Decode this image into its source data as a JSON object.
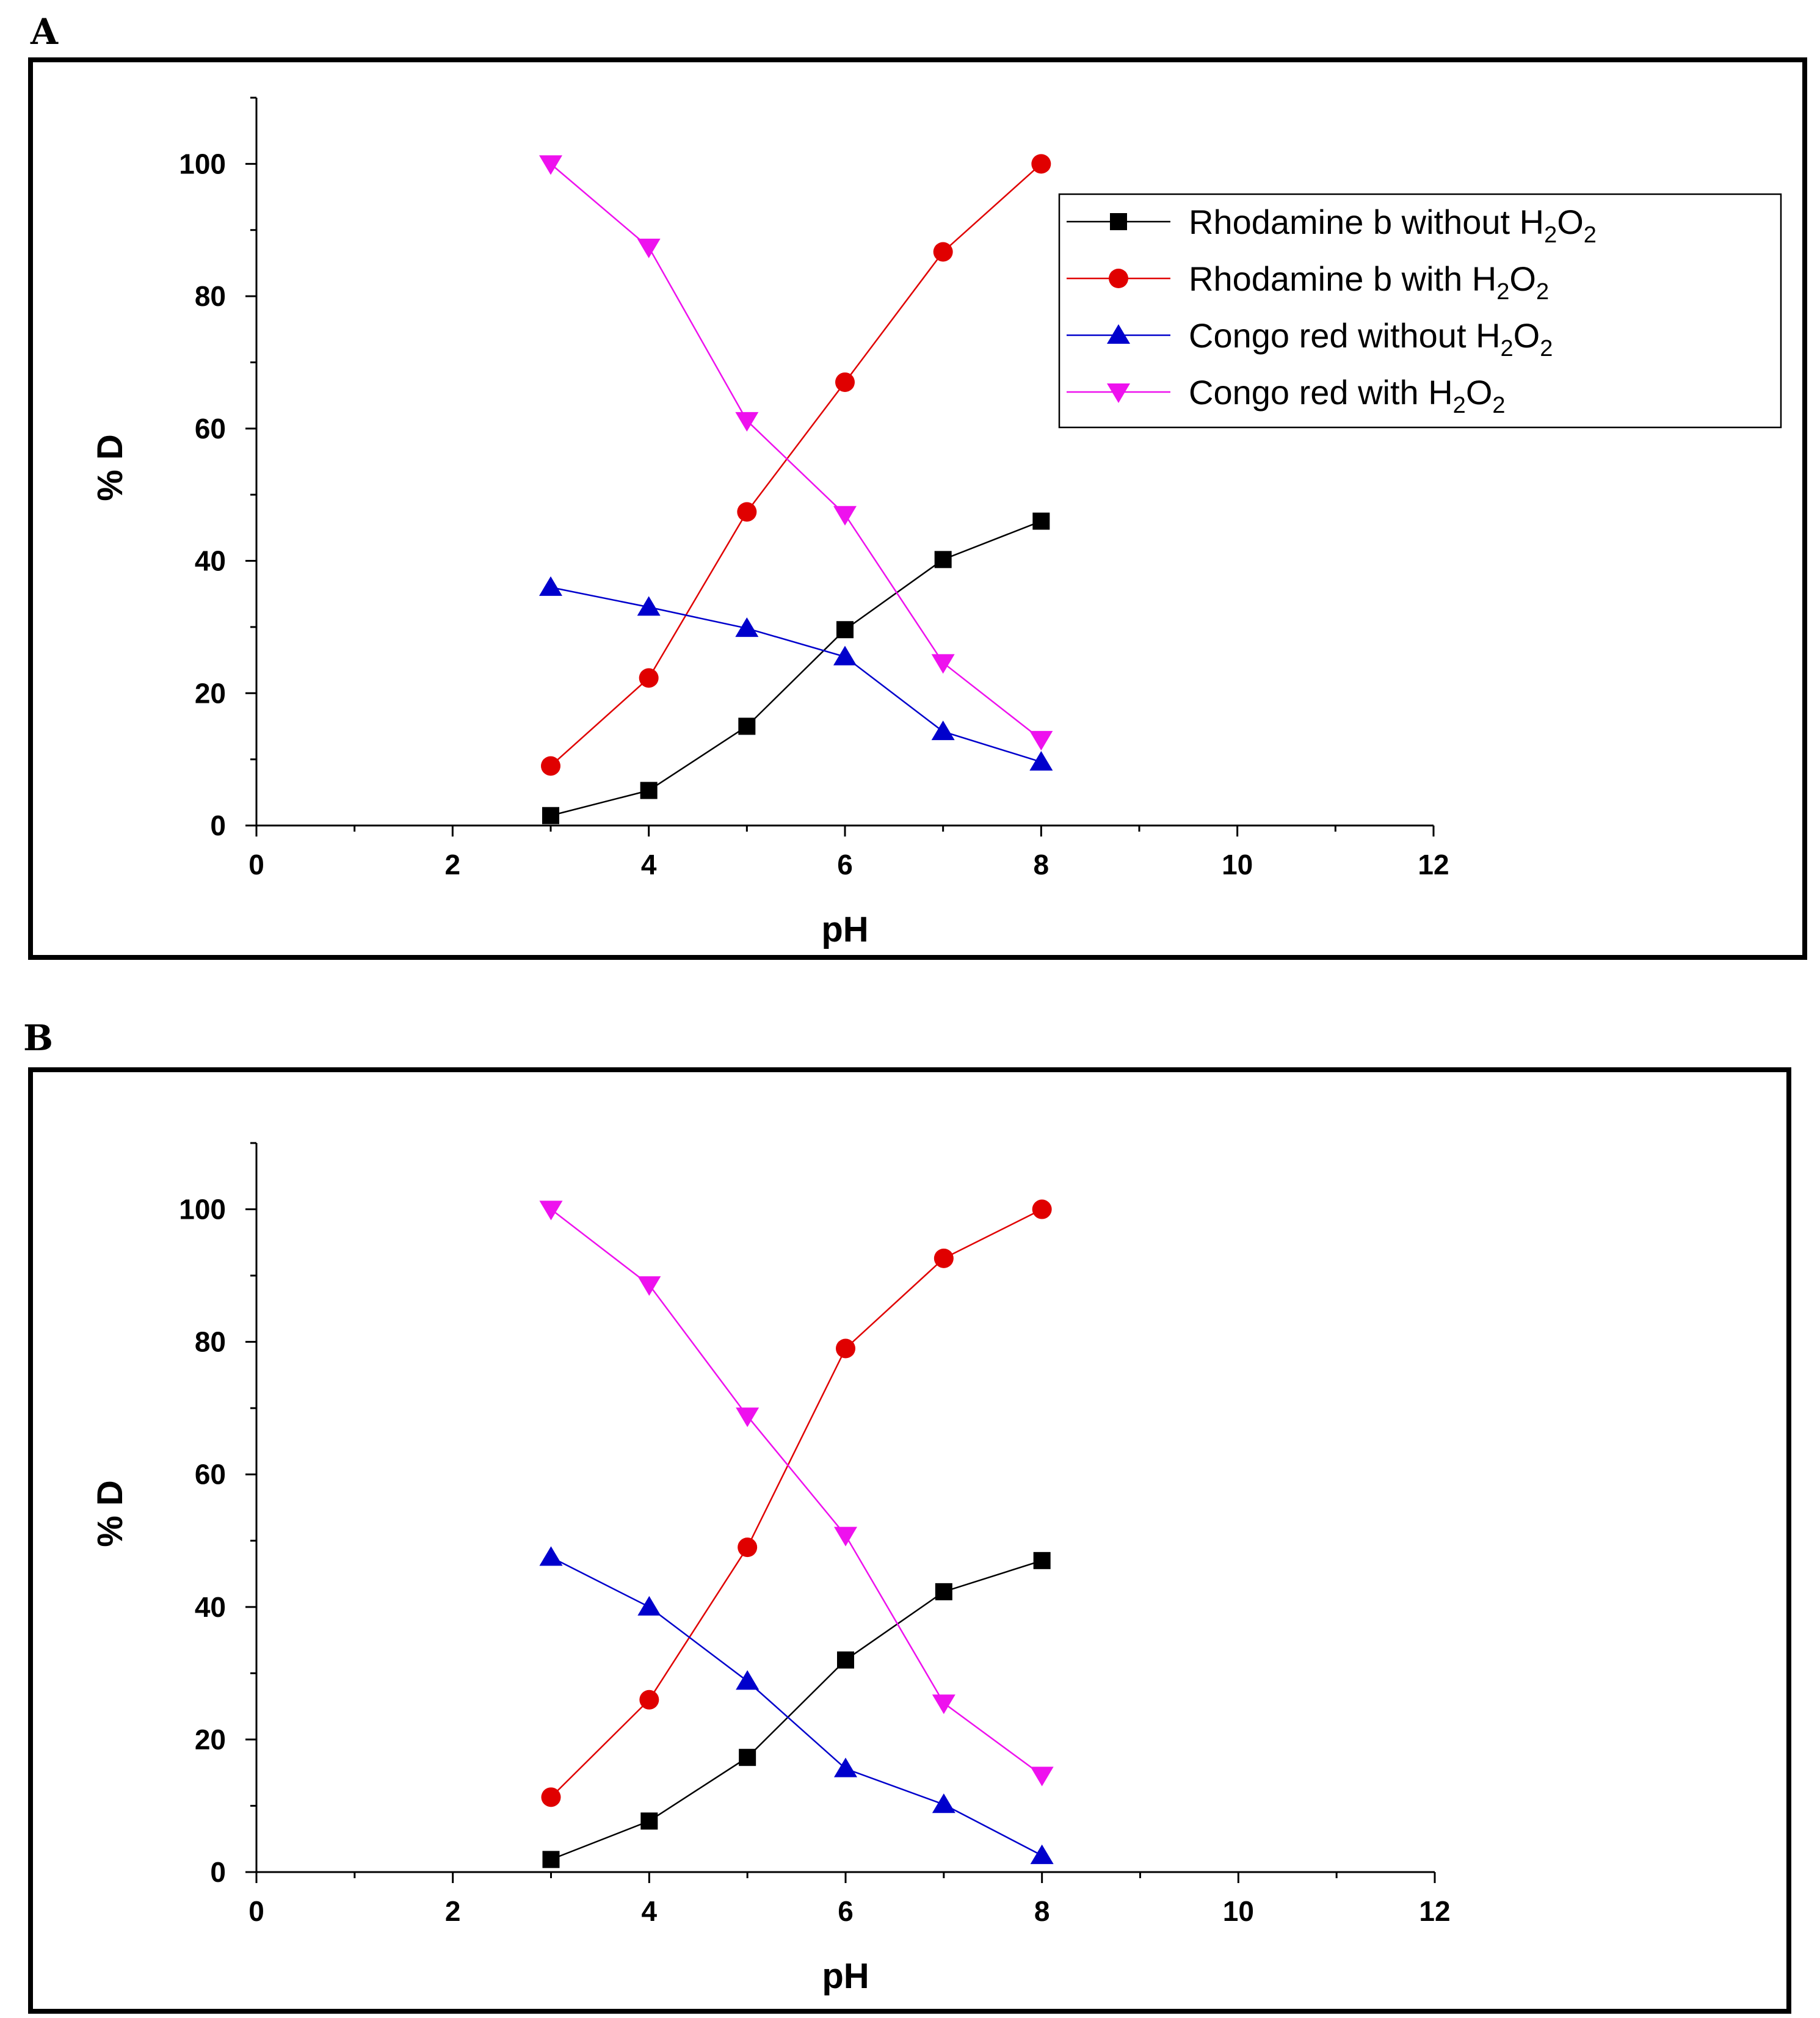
{
  "chart_data": [
    {
      "panel_label": "A",
      "type": "line",
      "xlabel": "pH",
      "ylabel": "% D",
      "xlim": [
        0,
        12
      ],
      "ylim": [
        0,
        110
      ],
      "xticks": [
        "0",
        "2",
        "4",
        "6",
        "8",
        "10",
        "12"
      ],
      "yticks": [
        "0",
        "20",
        "40",
        "60",
        "80",
        "100"
      ],
      "legend_position": "top-right",
      "legend": [
        {
          "text": "Rhodamine b without H",
          "sub1": "2",
          "mid": "O",
          "sub2": "2"
        },
        {
          "text": "Rhodamine b with H",
          "sub1": "2",
          "mid": "O",
          "sub2": "2"
        },
        {
          "text": "Congo red without H",
          "sub1": "2",
          "mid": "O",
          "sub2": "2"
        },
        {
          "text": "Congo red with H",
          "sub1": "2",
          "mid": "O",
          "sub2": "2"
        }
      ],
      "x": [
        3,
        4,
        5,
        6,
        7,
        8
      ],
      "series": [
        {
          "name": "Rhodamine b without H2O2",
          "marker": "square",
          "color": "#000000",
          "values": [
            1.5,
            5.3,
            15.0,
            29.6,
            40.2,
            46.0
          ]
        },
        {
          "name": "Rhodamine b with H2O2",
          "marker": "circle",
          "color": "#e00000",
          "values": [
            9.0,
            22.3,
            47.4,
            67.0,
            86.7,
            100.0
          ]
        },
        {
          "name": "Congo red without H2O2",
          "marker": "triangle-up",
          "color": "#0000cc",
          "values": [
            36.0,
            33.0,
            29.8,
            25.5,
            14.2,
            9.6
          ]
        },
        {
          "name": "Congo red with H2O2",
          "marker": "triangle-down",
          "color": "#ee11ee",
          "values": [
            100.0,
            87.4,
            61.2,
            47.0,
            24.6,
            13.0
          ]
        }
      ]
    },
    {
      "panel_label": "B",
      "type": "line",
      "xlabel": "pH",
      "ylabel": "% D",
      "xlim": [
        0,
        12
      ],
      "ylim": [
        0,
        110
      ],
      "xticks": [
        "0",
        "2",
        "4",
        "6",
        "8",
        "10",
        "12"
      ],
      "yticks": [
        "0",
        "20",
        "40",
        "60",
        "80",
        "100"
      ],
      "legend_position": "none",
      "x": [
        3,
        4,
        5,
        6,
        7,
        8
      ],
      "series": [
        {
          "name": "Rhodamine b without H2O2",
          "marker": "square",
          "color": "#000000",
          "values": [
            1.9,
            7.7,
            17.3,
            32.0,
            42.3,
            47.0
          ]
        },
        {
          "name": "Rhodamine b with H2O2",
          "marker": "circle",
          "color": "#e00000",
          "values": [
            11.3,
            26.0,
            49.0,
            79.0,
            92.6,
            100.0
          ]
        },
        {
          "name": "Congo red without H2O2",
          "marker": "triangle-up",
          "color": "#0000cc",
          "values": [
            47.5,
            40.0,
            28.8,
            15.6,
            10.2,
            2.5
          ]
        },
        {
          "name": "Congo red with H2O2",
          "marker": "triangle-down",
          "color": "#ee11ee",
          "values": [
            100.0,
            88.6,
            68.8,
            50.8,
            25.5,
            14.6
          ]
        }
      ]
    }
  ]
}
